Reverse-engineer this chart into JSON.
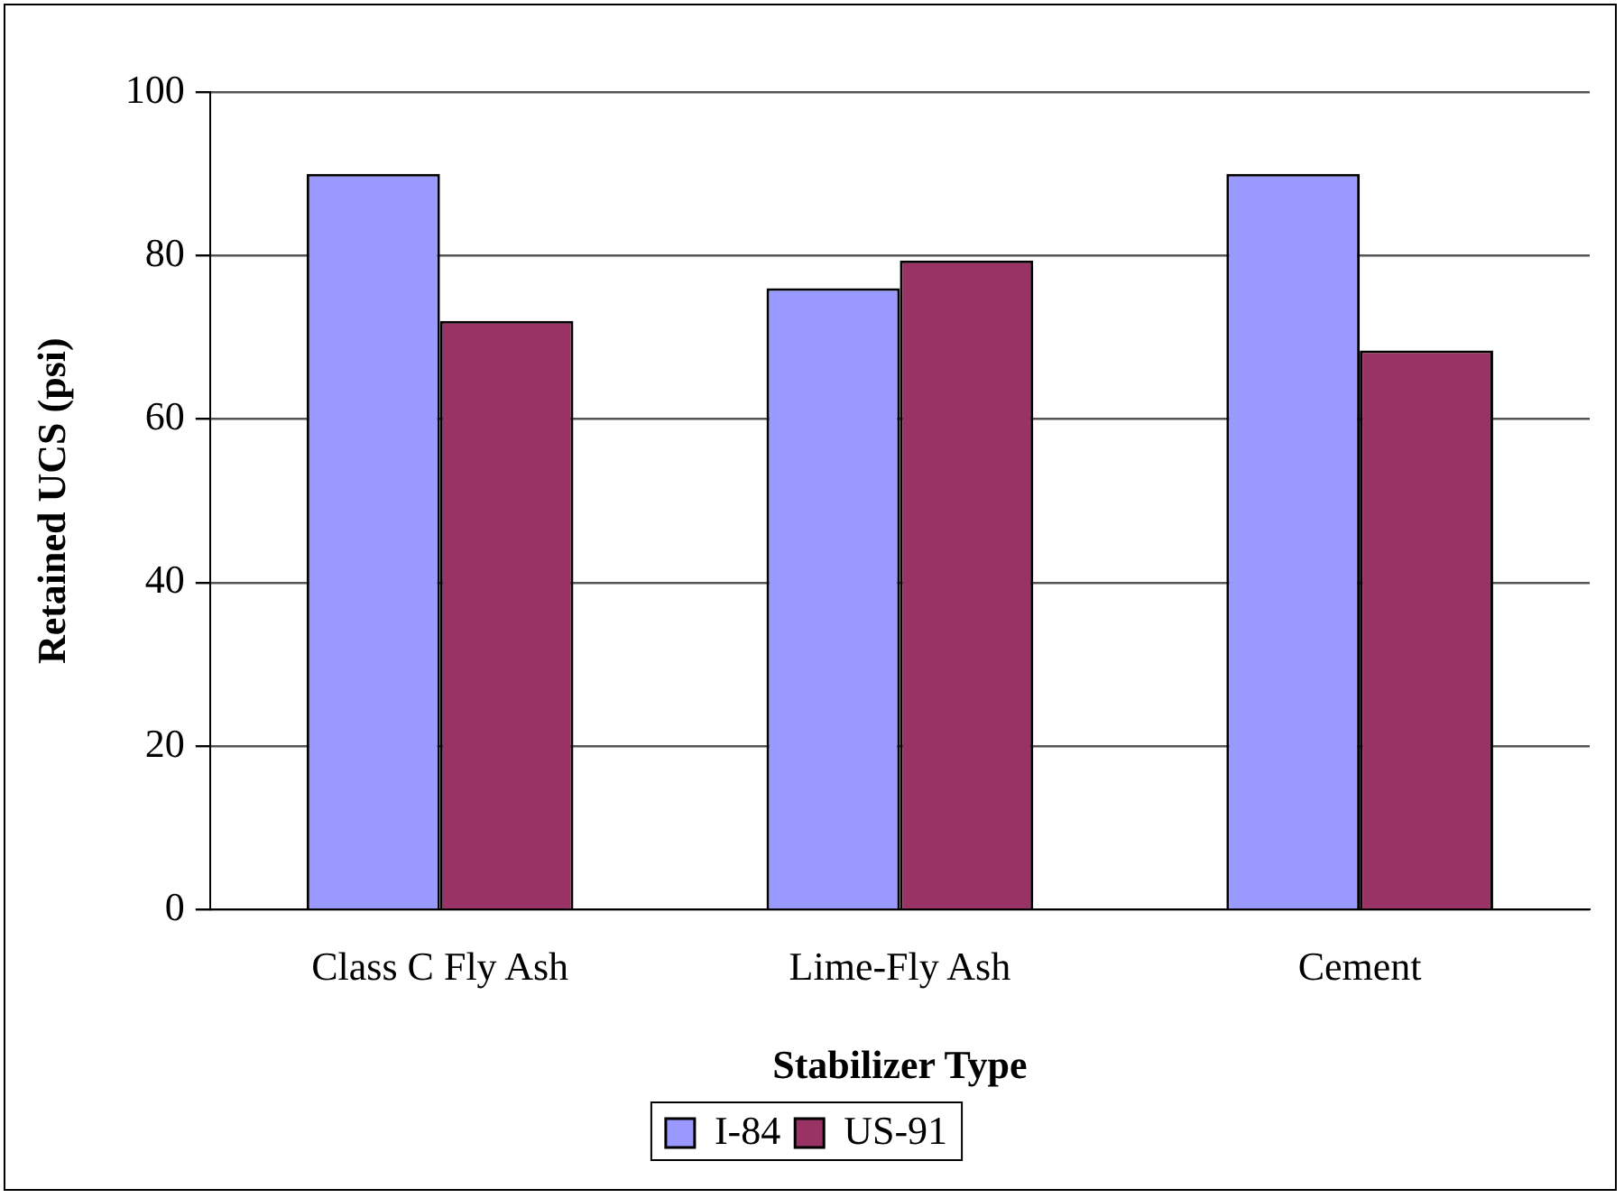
{
  "chart_data": {
    "type": "bar",
    "xlabel": "Stabilizer Type",
    "ylabel": "Retained UCS (psi)",
    "categories": [
      "Class C Fly Ash",
      "Lime-Fly Ash",
      "Cement"
    ],
    "series": [
      {
        "name": "I-84",
        "color": "#9999ff",
        "values": [
          90,
          76,
          90
        ]
      },
      {
        "name": "US-91",
        "color": "#993366",
        "values": [
          72,
          79.4,
          68.4
        ]
      }
    ],
    "ylim": [
      0,
      100
    ],
    "yticks": [
      0,
      20,
      40,
      60,
      80,
      100
    ],
    "grid": "y",
    "legend": "bottom"
  }
}
